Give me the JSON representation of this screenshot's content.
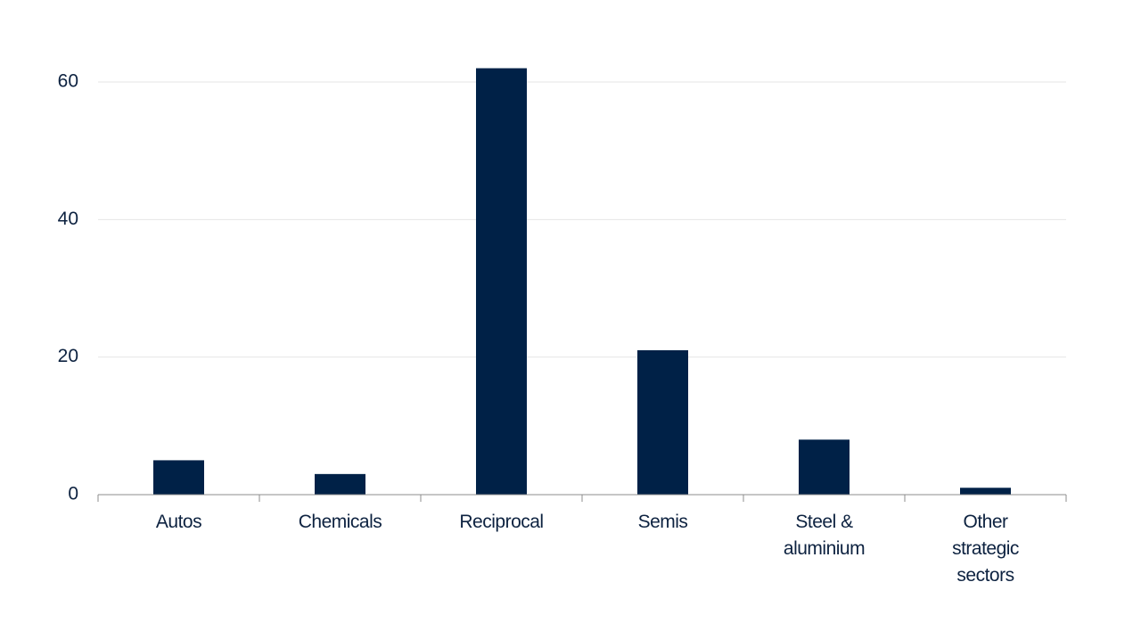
{
  "chart_data": {
    "type": "bar",
    "categories": [
      "Autos",
      "Chemicals",
      "Reciprocal",
      "Semis",
      "Steel & aluminium",
      "Other strategic sectors"
    ],
    "values": [
      5,
      3,
      62,
      21,
      8,
      1
    ],
    "color": "#002147",
    "ylim": [
      0,
      65
    ],
    "yticks": [
      0,
      20,
      40,
      60
    ],
    "grid": true
  }
}
